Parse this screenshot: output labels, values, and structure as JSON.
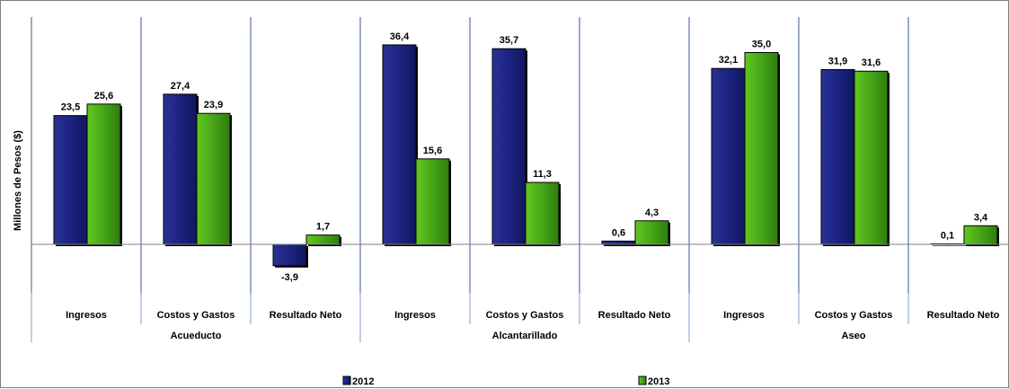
{
  "chart_data": {
    "type": "bar",
    "title": "",
    "ylabel": "Millones de Pesos ($)",
    "xlabel": "",
    "ylim": [
      -7.5,
      42
    ],
    "grid": false,
    "legend_position": "bottom",
    "groups": [
      {
        "name": "Acueducto",
        "categories": [
          "Ingresos",
          "Costos y Gastos",
          "Resultado Neto"
        ]
      },
      {
        "name": "Alcantarillado",
        "categories": [
          "Ingresos",
          "Costos y Gastos",
          "Resultado Neto"
        ]
      },
      {
        "name": "Aseo",
        "categories": [
          "Ingresos",
          "Costos y Gastos",
          "Resultado Neto"
        ]
      }
    ],
    "series": [
      {
        "name": "2012",
        "color": "#1c2380",
        "values": [
          23.5,
          27.4,
          -3.9,
          36.4,
          35.7,
          0.6,
          32.1,
          31.9,
          0.1
        ],
        "labels": [
          "23,5",
          "27,4",
          "-3,9",
          "36,4",
          "35,7",
          "0,6",
          "32,1",
          "31,9",
          "0,1"
        ]
      },
      {
        "name": "2013",
        "color": "#46a518",
        "values": [
          25.6,
          23.9,
          1.7,
          15.6,
          11.3,
          4.3,
          35.0,
          31.6,
          3.4
        ],
        "labels": [
          "25,6",
          "23,9",
          "1,7",
          "15,6",
          "11,3",
          "4,3",
          "35,0",
          "31,6",
          "3,4"
        ]
      }
    ]
  }
}
